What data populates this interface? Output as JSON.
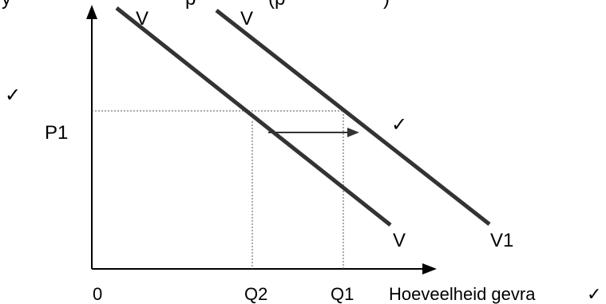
{
  "diagram": {
    "top_text_fragments": [
      "y",
      "p",
      "(p",
      ")"
    ],
    "check_mark": "✓",
    "y_axis_label": "P1",
    "x_axis_origin": "0",
    "x_axis_tick_q2": "Q2",
    "x_axis_tick_q1": "Q1",
    "x_axis_title": "Hoeveelheid gevra",
    "curve_v_label": "V",
    "curve_v_top_label": "V",
    "curve_v1_top_label": "V",
    "curve_v1_label": "V1",
    "line_color": "#333333",
    "guide_color": "#555555"
  }
}
